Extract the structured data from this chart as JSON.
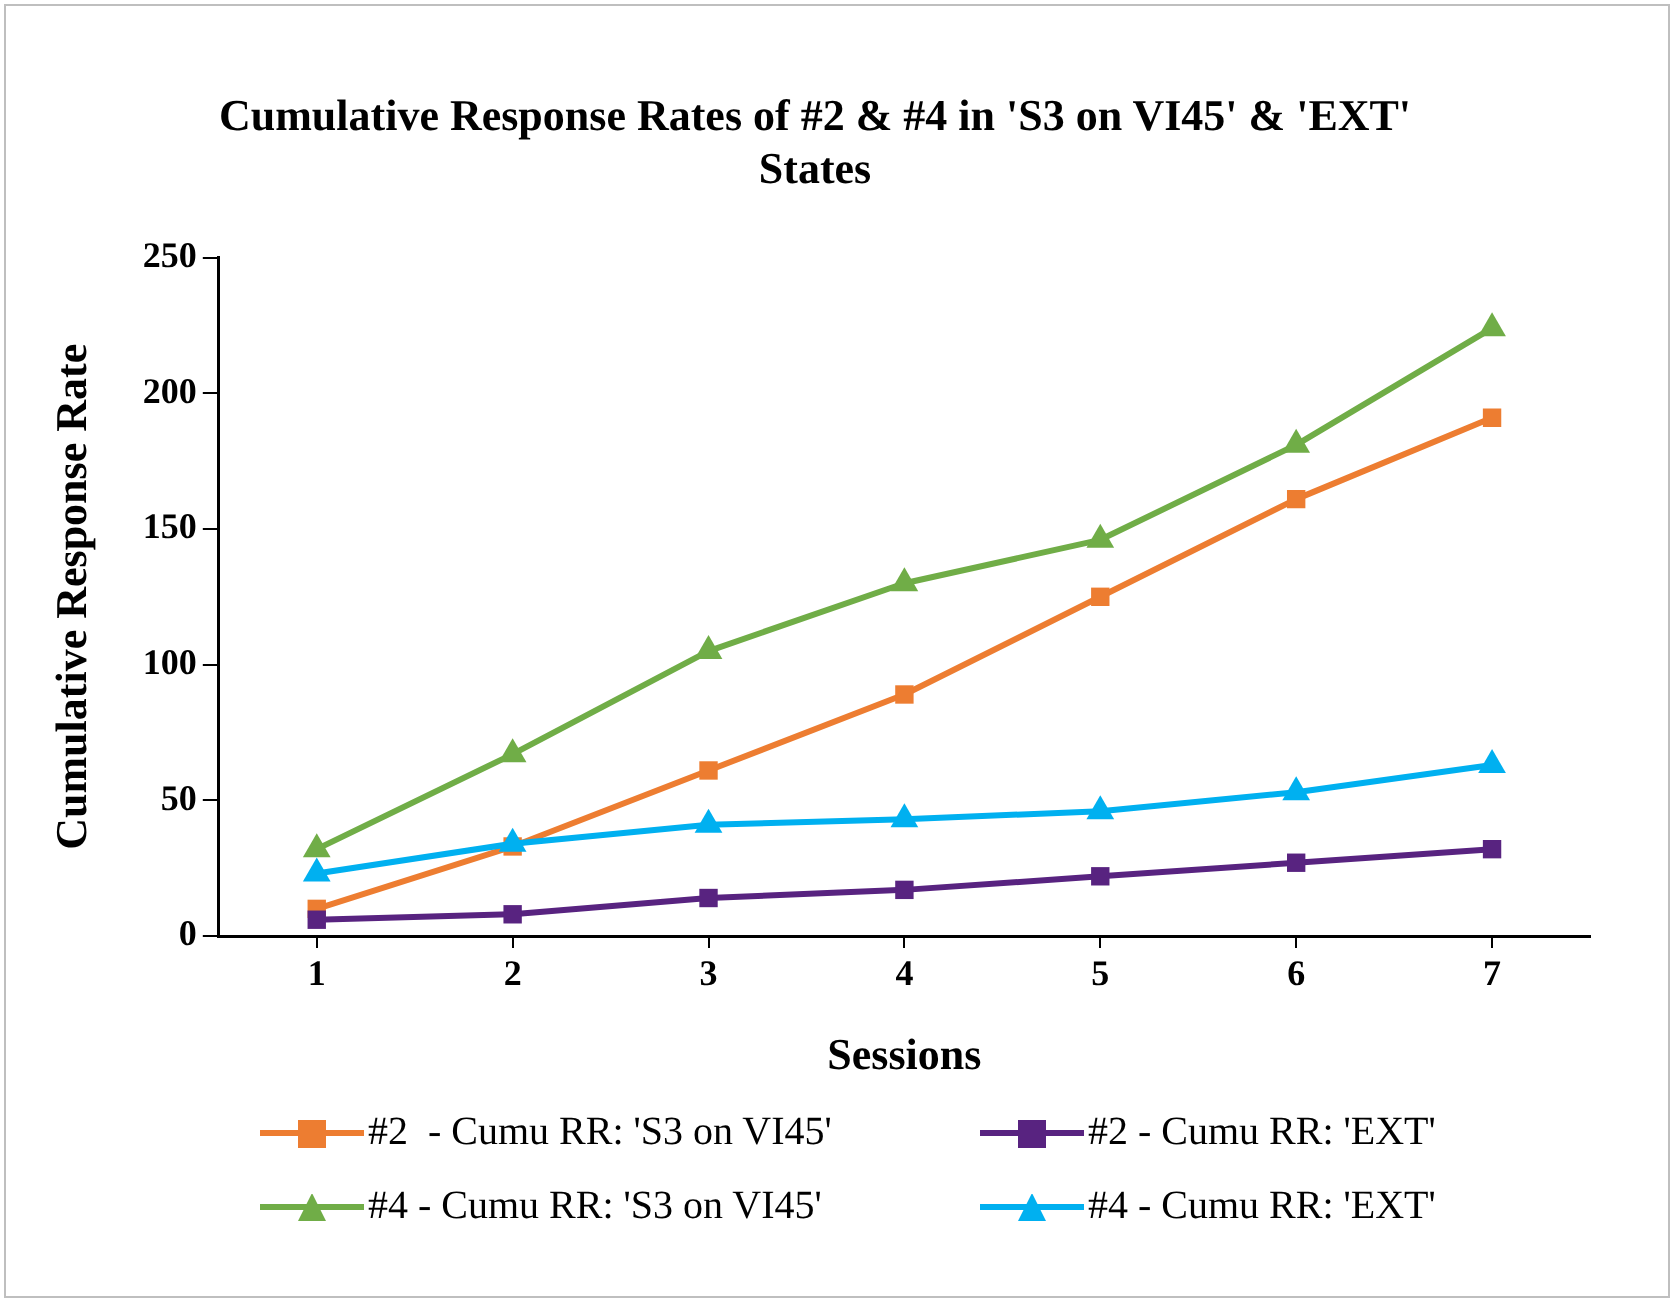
{
  "chart_data": {
    "type": "line",
    "title": "Cumulative Response Rates of #2 & #4 in 'S3 on VI45' & 'EXT' States",
    "xlabel": "Sessions",
    "ylabel": "Cumulative Response Rate",
    "categories": [
      "1",
      "2",
      "3",
      "4",
      "5",
      "6",
      "7"
    ],
    "series": [
      {
        "name": "#2  - Cumu RR: 'S3 on VI45'",
        "color": "#ed7d31",
        "marker": "square",
        "values": [
          10,
          33,
          61,
          89,
          125,
          161,
          191
        ]
      },
      {
        "name": "#2 - Cumu RR: 'EXT'",
        "color": "#582380",
        "marker": "square",
        "values": [
          6,
          8,
          14,
          17,
          22,
          27,
          32
        ]
      },
      {
        "name": "#4 - Cumu RR: 'S3 on VI45'",
        "color": "#70ad47",
        "marker": "triangle",
        "values": [
          32,
          67,
          105,
          130,
          146,
          181,
          224
        ]
      },
      {
        "name": "#4 - Cumu RR: 'EXT'",
        "color": "#00b0f0",
        "marker": "triangle",
        "values": [
          23,
          34,
          41,
          43,
          46,
          53,
          63
        ]
      }
    ],
    "ylim": [
      0,
      250
    ],
    "yticks": [
      0,
      50,
      100,
      150,
      200,
      250
    ],
    "grid": false,
    "legend": "bottom"
  }
}
